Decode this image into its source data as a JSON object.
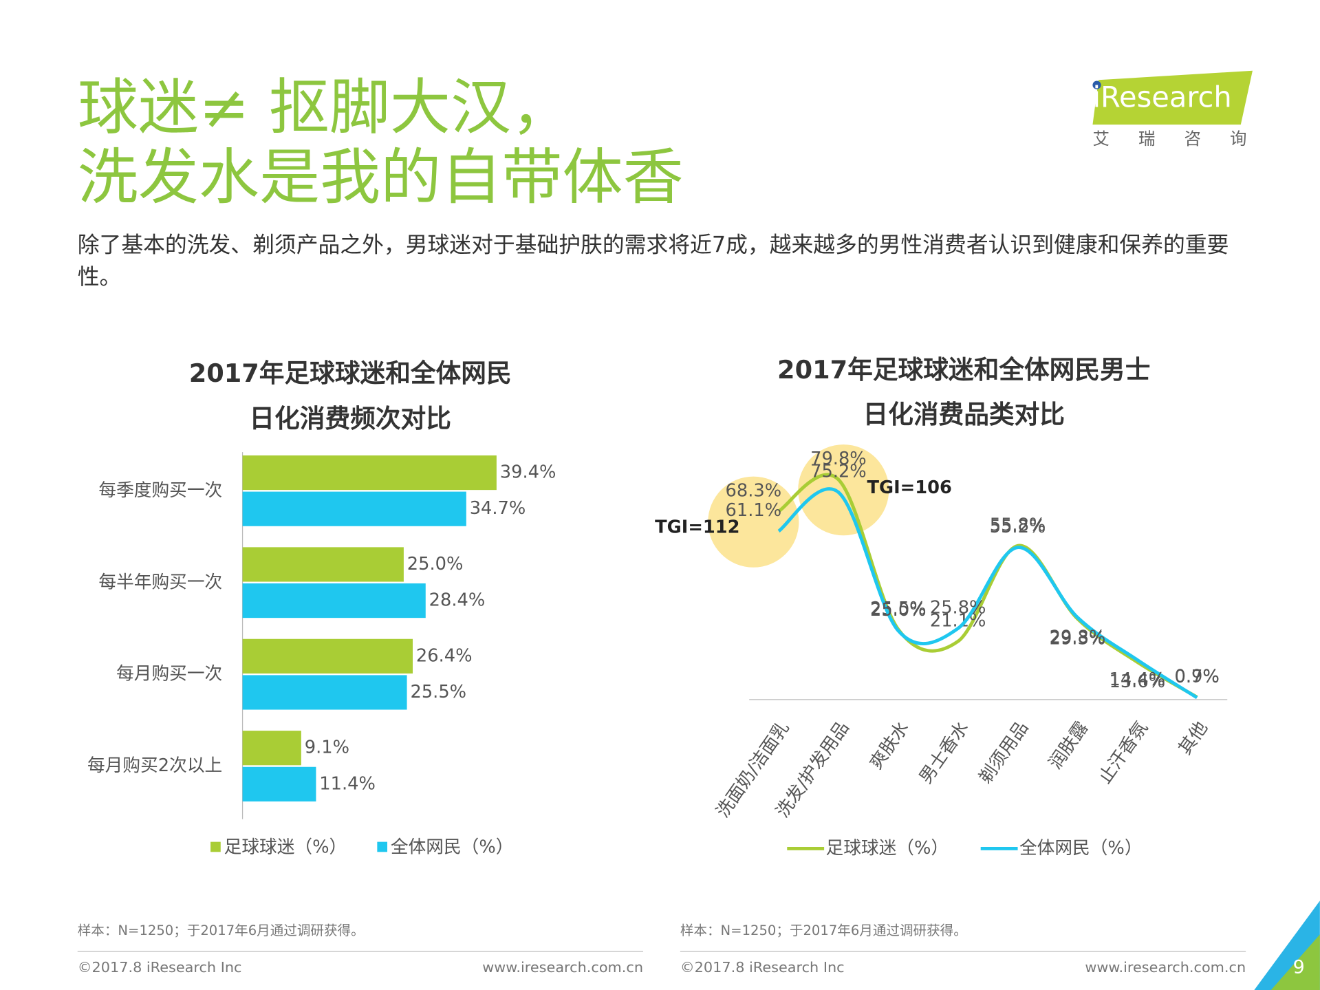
{
  "header": {
    "title": [
      "球迷≠ 抠脚大汉，",
      "洗发水是我的自带体香"
    ],
    "subtitle": [
      "除了基本的洗发、剃须产品之外，男球迷对于基础护肤的需求将近7成，越来越多的男性消费者认识到健康和保养的重要",
      "性。"
    ],
    "logo": "iResearch",
    "logo_cn": "艾 瑞 咨 询"
  },
  "chart_data": [
    {
      "type": "bar",
      "orientation": "horizontal",
      "title": [
        "2017年足球球迷和全体网民",
        "日化消费频次对比"
      ],
      "categories": [
        "每季度购买一次",
        "每半年购买一次",
        "每月购买一次",
        "每月购买2次以上"
      ],
      "series": [
        {
          "name": "足球球迷（%）",
          "color": "#a9cd35",
          "values": [
            39.4,
            25.0,
            26.4,
            9.1
          ],
          "value_labels": [
            "39.4%",
            "25.0%",
            "26.4%",
            "9.1%"
          ]
        },
        {
          "name": "全体网民（%）",
          "color": "#1fc7ef",
          "values": [
            34.7,
            28.4,
            25.5,
            11.4
          ],
          "value_labels": [
            "34.7%",
            "28.4%",
            "25.5%",
            "11.4%"
          ]
        }
      ],
      "xlim": [
        0,
        50
      ],
      "legend": "bottom"
    },
    {
      "type": "line",
      "title": [
        "2017年足球球迷和全体网民男士",
        "日化消费品类对比"
      ],
      "categories": [
        "洗面奶/洁面乳",
        "洗发/护发用品",
        "爽肤水",
        "男士香水",
        "剃须用品",
        "润肤露",
        "止汗香氛",
        "其他"
      ],
      "series": [
        {
          "name": "足球球迷（%）",
          "color": "#a9cd35",
          "values": [
            68.3,
            79.8,
            25.5,
            21.1,
            55.8,
            29.3,
            13.6,
            0.9
          ],
          "value_labels": [
            "68.3%",
            "79.8%",
            "25.5%",
            "21.1%",
            "55.8%",
            "29.3%",
            "13.6%",
            "0.9%"
          ]
        },
        {
          "name": "全体网民（%）",
          "color": "#1fc7ef",
          "values": [
            61.1,
            75.2,
            25.0,
            25.8,
            55.2,
            29.8,
            14.4,
            0.7
          ],
          "value_labels": [
            "61.1%",
            "75.2%",
            "25.0%",
            "25.8%",
            "55.2%",
            "29.8%",
            "14.4%",
            "0.7%"
          ]
        }
      ],
      "ylim": [
        0,
        80
      ],
      "annotations": [
        "TGI=112",
        "TGI=106"
      ],
      "legend": "bottom"
    }
  ],
  "footer": [
    {
      "source": "样本：N=1250；于2017年6月通过调研获得。",
      "copyright": "©2017.8 iResearch Inc",
      "url": "www.iresearch.com.cn"
    },
    {
      "source": "样本：N=1250；于2017年6月通过调研获得。",
      "copyright": "©2017.8 iResearch Inc",
      "url": "www.iresearch.com.cn"
    }
  ],
  "page_number": "9"
}
